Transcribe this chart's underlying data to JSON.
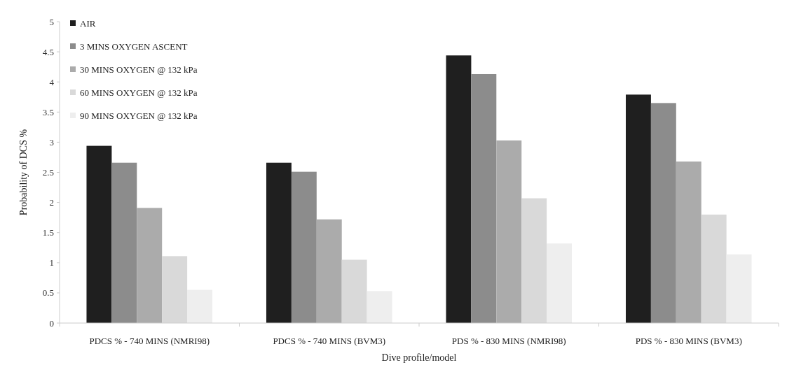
{
  "chart_data": {
    "type": "bar",
    "xlabel": "Dive profile/model",
    "ylabel": "Probability of DCS %",
    "categories": [
      "PDCS % - 740 MINS (NMRI98)",
      "PDCS % - 740 MINS (BVM3)",
      "PDS % - 830 MINS (NMRI98)",
      "PDS % - 830 MINS (BVM3)"
    ],
    "series": [
      {
        "name": "AIR",
        "color": "#1f1f1f",
        "values": [
          2.94,
          2.66,
          4.44,
          3.79
        ]
      },
      {
        "name": "3 MINS OXYGEN ASCENT",
        "color": "#8c8c8c",
        "values": [
          2.66,
          2.51,
          4.13,
          3.65
        ]
      },
      {
        "name": "30 MINS OXYGEN @ 132 kPa",
        "color": "#ababab",
        "values": [
          1.91,
          1.72,
          3.03,
          2.68
        ]
      },
      {
        "name": "60 MINS OXYGEN @ 132 kPa",
        "color": "#d9d9d9",
        "values": [
          1.11,
          1.05,
          2.07,
          1.8
        ]
      },
      {
        "name": "90 MINS OXYGEN @ 132 kPa",
        "color": "#eeeeee",
        "values": [
          0.55,
          0.53,
          1.32,
          1.14
        ]
      }
    ],
    "ylim": [
      0,
      5
    ],
    "yticks": [
      0,
      0.5,
      1,
      1.5,
      2,
      2.5,
      3,
      3.5,
      4,
      4.5,
      5
    ],
    "legend": "top left"
  }
}
